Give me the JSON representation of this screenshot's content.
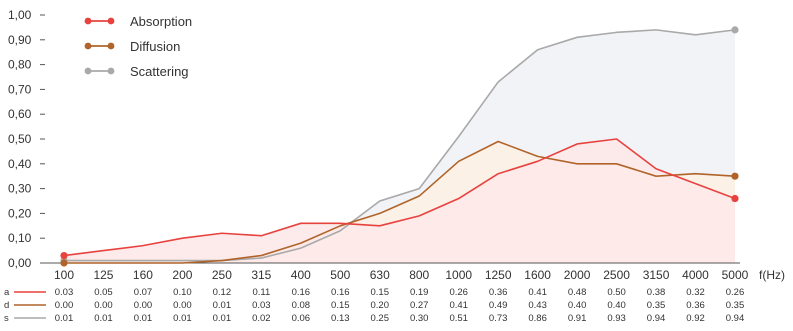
{
  "chart_data": {
    "type": "area",
    "categories": [
      "100",
      "125",
      "160",
      "200",
      "250",
      "315",
      "400",
      "500",
      "630",
      "800",
      "1000",
      "1250",
      "1600",
      "2000",
      "2500",
      "3150",
      "4000",
      "5000"
    ],
    "xlabel": "f(Hz)",
    "ylim": [
      0,
      1
    ],
    "y_ticks": [
      "0,00",
      "0,10",
      "0,20",
      "0,30",
      "0,40",
      "0,50",
      "0,60",
      "0,70",
      "0,80",
      "0,90",
      "1,00"
    ],
    "legend_placement": "top-left",
    "grid": false,
    "series": [
      {
        "name": "Absorption",
        "symbol": "a",
        "color": "#e8423f",
        "fill": "#fde9e9",
        "values": [
          0.03,
          0.05,
          0.07,
          0.1,
          0.12,
          0.11,
          0.16,
          0.16,
          0.15,
          0.19,
          0.26,
          0.36,
          0.41,
          0.48,
          0.5,
          0.38,
          0.32,
          0.26
        ],
        "labels": [
          "0.03",
          "0.05",
          "0.07",
          "0.10",
          "0.12",
          "0.11",
          "0.16",
          "0.16",
          "0.15",
          "0.19",
          "0.26",
          "0.36",
          "0.41",
          "0.48",
          "0.50",
          "0.38",
          "0.32",
          "0.26"
        ]
      },
      {
        "name": "Diffusion",
        "symbol": "d",
        "color": "#b0642a",
        "fill": "#fdf1e4",
        "values": [
          0.0,
          0.0,
          0.0,
          0.0,
          0.01,
          0.03,
          0.08,
          0.15,
          0.2,
          0.27,
          0.41,
          0.49,
          0.43,
          0.4,
          0.4,
          0.35,
          0.36,
          0.35
        ],
        "labels": [
          "0.00",
          "0.00",
          "0.00",
          "0.00",
          "0.01",
          "0.03",
          "0.08",
          "0.15",
          "0.20",
          "0.27",
          "0.41",
          "0.49",
          "0.43",
          "0.40",
          "0.40",
          "0.35",
          "0.36",
          "0.35"
        ]
      },
      {
        "name": "Scattering",
        "symbol": "s",
        "color": "#a9a9a9",
        "fill": "#f0f2f6",
        "values": [
          0.01,
          0.01,
          0.01,
          0.01,
          0.01,
          0.02,
          0.06,
          0.13,
          0.25,
          0.3,
          0.51,
          0.73,
          0.86,
          0.91,
          0.93,
          0.94,
          0.92,
          0.94
        ],
        "labels": [
          "0.01",
          "0.01",
          "0.01",
          "0.01",
          "0.01",
          "0.02",
          "0.06",
          "0.13",
          "0.25",
          "0.30",
          "0.51",
          "0.73",
          "0.86",
          "0.91",
          "0.93",
          "0.94",
          "0.92",
          "0.94"
        ]
      }
    ]
  }
}
